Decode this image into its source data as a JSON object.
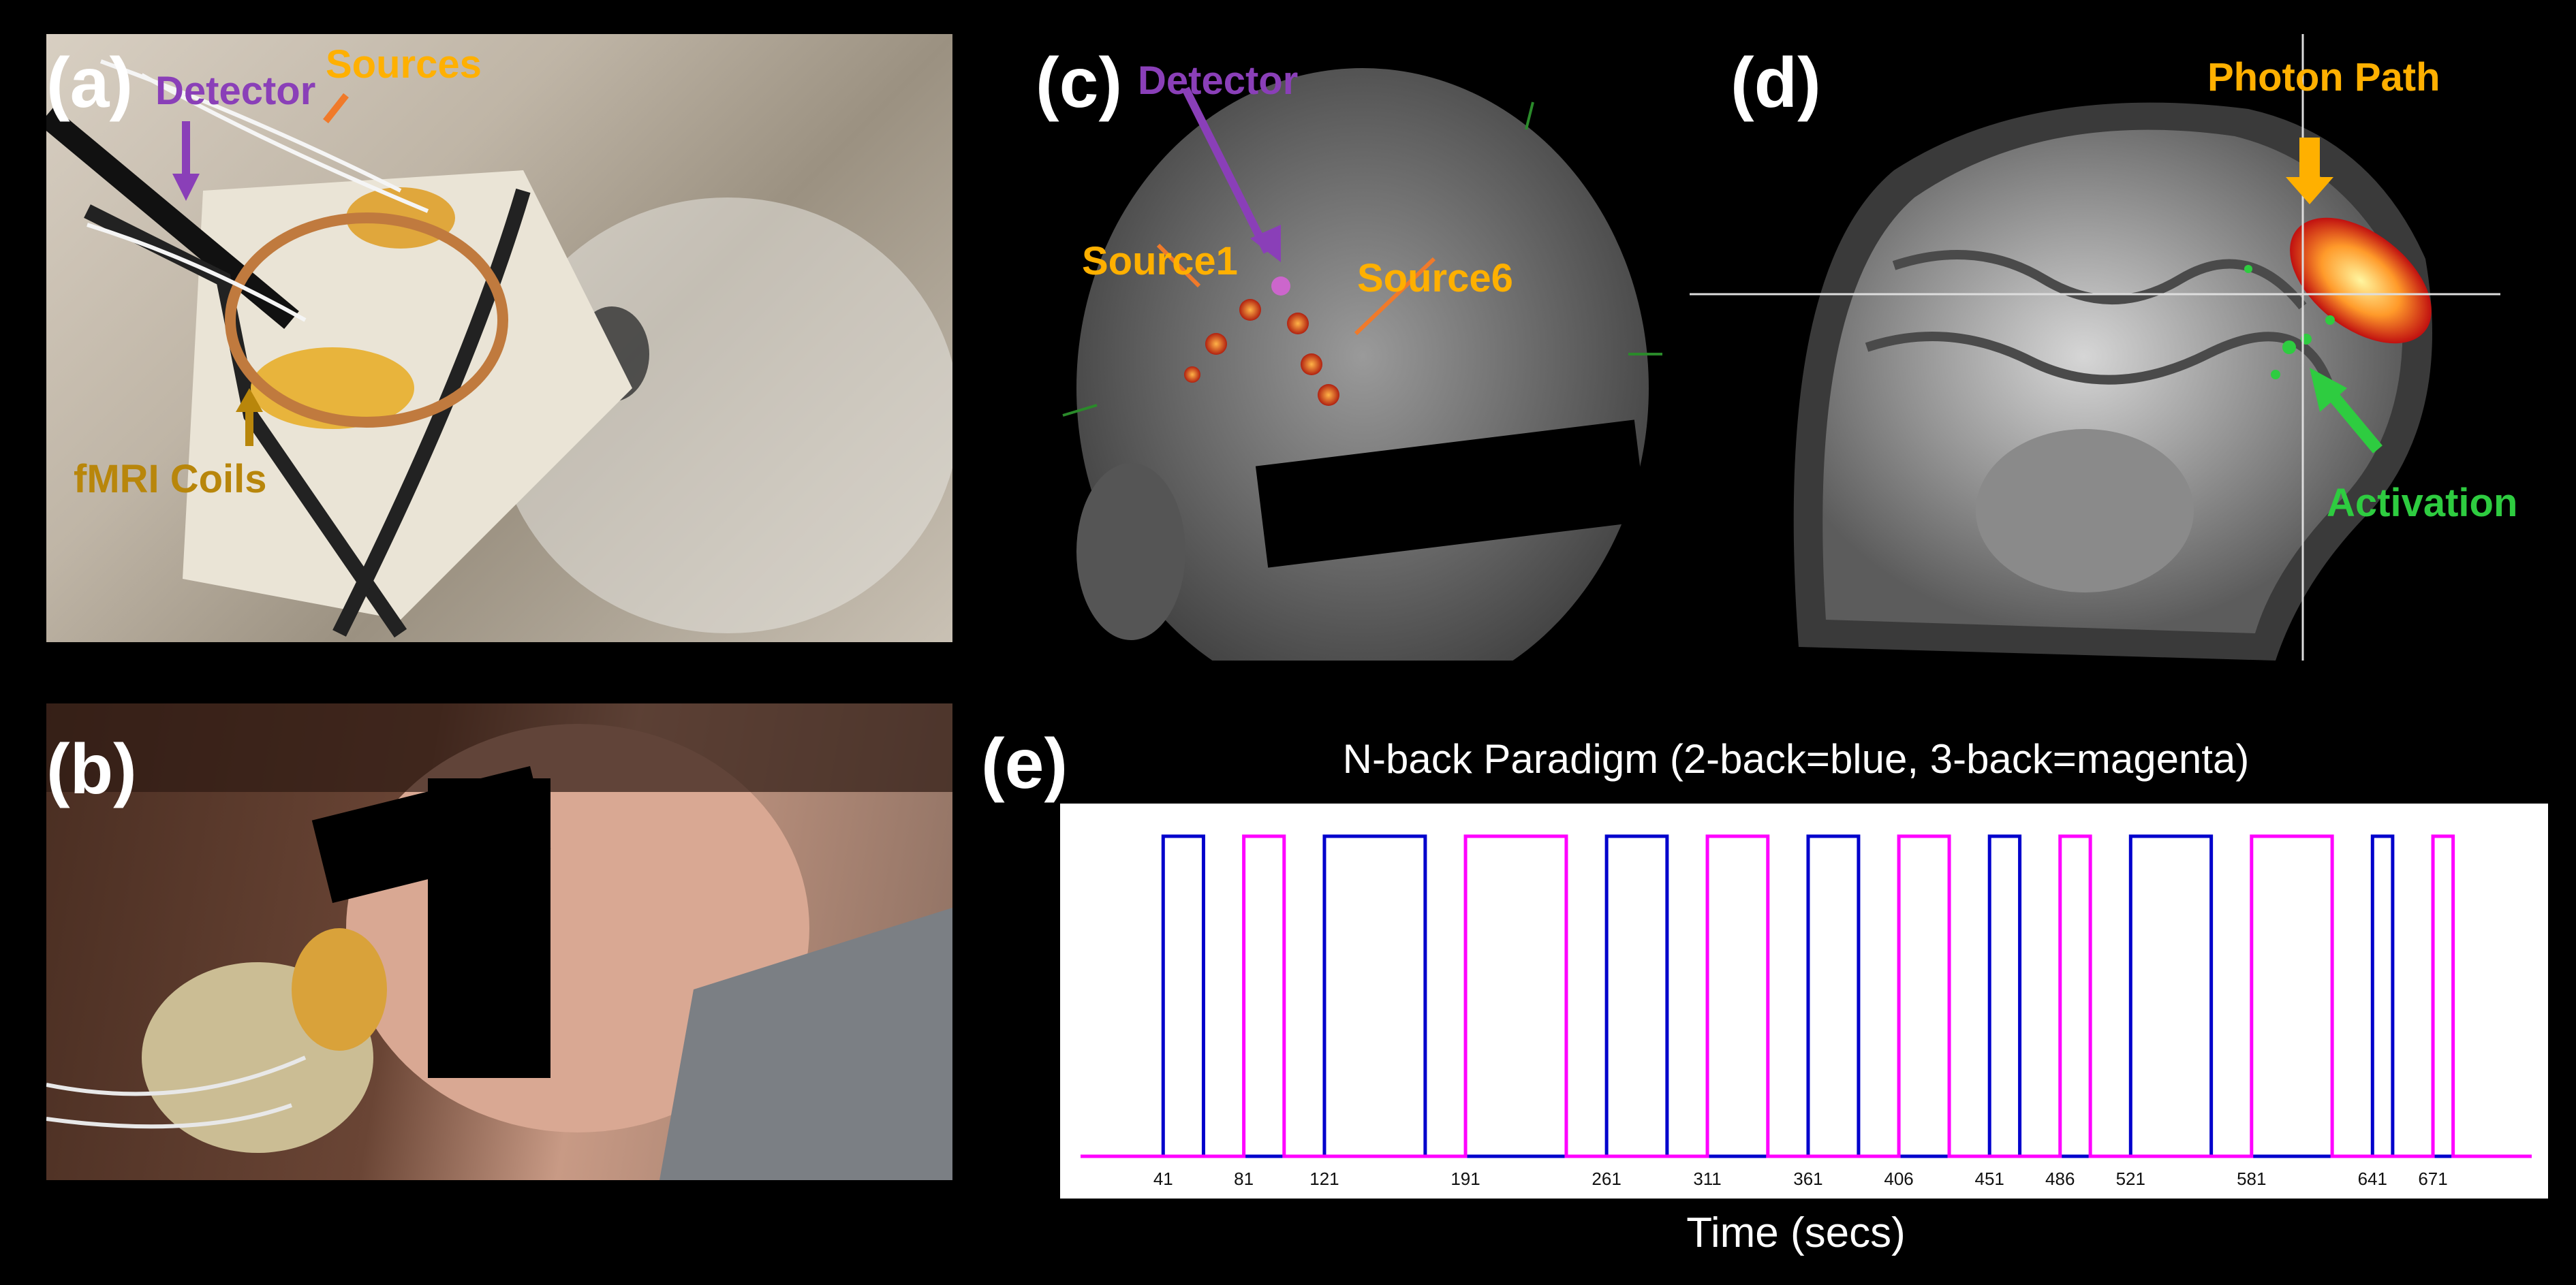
{
  "panels": {
    "a": {
      "label": "(a)",
      "annotations": {
        "detector": "Detector",
        "sources": "Sources",
        "coils": "fMRI Coils"
      }
    },
    "b": {
      "label": "(b)"
    },
    "c": {
      "label": "(c)",
      "annotations": {
        "detector": "Detector",
        "source1": "Source1",
        "source6": "Source6"
      }
    },
    "d": {
      "label": "(d)",
      "annotations": {
        "photon_path": "Photon Path",
        "activation": "Activation"
      }
    },
    "e": {
      "label": "(e)"
    }
  },
  "colors": {
    "detector": "#8a3fb8",
    "source": "#ffb000",
    "arrow": "#f07a2a",
    "coil": "#b8860b",
    "activation": "#2ecc40",
    "two_back": "#0000cc",
    "three_back": "#ff00ff"
  },
  "chart_data": {
    "type": "line",
    "title": "N-back Paradigm (2-back=blue, 3-back=magenta)",
    "xlabel": "Time (secs)",
    "ylabel": "",
    "xlim": [
      0,
      720
    ],
    "ylim": [
      0,
      1
    ],
    "grid": false,
    "x_ticks": [
      41,
      81,
      121,
      191,
      261,
      311,
      361,
      406,
      451,
      486,
      521,
      581,
      641,
      671
    ],
    "series": [
      {
        "color": "#0000cc",
        "blocks": [
          [
            41,
            61
          ],
          [
            121,
            171
          ],
          [
            261,
            291
          ],
          [
            361,
            386
          ],
          [
            451,
            466
          ],
          [
            521,
            561
          ],
          [
            641,
            651
          ]
        ]
      },
      {
        "color": "#ff00ff",
        "blocks": [
          [
            81,
            101
          ],
          [
            191,
            241
          ],
          [
            311,
            341
          ],
          [
            406,
            431
          ],
          [
            486,
            501
          ],
          [
            581,
            621
          ],
          [
            671,
            681
          ]
        ]
      }
    ]
  }
}
